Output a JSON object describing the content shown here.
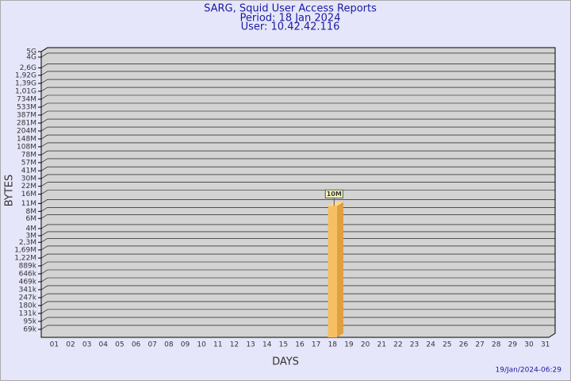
{
  "chart_data": {
    "type": "bar",
    "title": "SARG, Squid User Access Reports",
    "subtitle": "Period: 18 Jan 2024",
    "user": "User: 10.42.42.116",
    "y_label": "BYTES",
    "x_label": "DAYS",
    "footer": "19/Jan/2024-06:29",
    "yscale": "log",
    "categories": [
      "01",
      "02",
      "03",
      "04",
      "05",
      "06",
      "07",
      "08",
      "09",
      "10",
      "11",
      "12",
      "13",
      "14",
      "15",
      "16",
      "17",
      "18",
      "19",
      "20",
      "21",
      "22",
      "23",
      "24",
      "25",
      "26",
      "27",
      "28",
      "29",
      "30",
      "31"
    ],
    "values": [
      null,
      null,
      null,
      null,
      null,
      null,
      null,
      null,
      null,
      null,
      null,
      null,
      null,
      null,
      null,
      null,
      null,
      10000000,
      null,
      null,
      null,
      null,
      null,
      null,
      null,
      null,
      null,
      null,
      null,
      null,
      null
    ],
    "value_labels": [
      null,
      null,
      null,
      null,
      null,
      null,
      null,
      null,
      null,
      null,
      null,
      null,
      null,
      null,
      null,
      null,
      null,
      "10M",
      null,
      null,
      null,
      null,
      null,
      null,
      null,
      null,
      null,
      null,
      null,
      null,
      null
    ],
    "color": "#f8bf62",
    "ylim": [
      50000,
      5000000000
    ],
    "yticks": [
      {
        "value": 69000,
        "label": "69k"
      },
      {
        "value": 95000,
        "label": "95k"
      },
      {
        "value": 131000,
        "label": "131k"
      },
      {
        "value": 180000,
        "label": "180k"
      },
      {
        "value": 247000,
        "label": "247k"
      },
      {
        "value": 341000,
        "label": "341k"
      },
      {
        "value": 469000,
        "label": "469k"
      },
      {
        "value": 646000,
        "label": "646k"
      },
      {
        "value": 889000,
        "label": "889k"
      },
      {
        "value": 1220000,
        "label": "1,22M"
      },
      {
        "value": 1690000,
        "label": "1,69M"
      },
      {
        "value": 2300000,
        "label": "2,3M"
      },
      {
        "value": 3000000,
        "label": "3M"
      },
      {
        "value": 4000000,
        "label": "4M"
      },
      {
        "value": 6000000,
        "label": "6M"
      },
      {
        "value": 8000000,
        "label": "8M"
      },
      {
        "value": 11000000,
        "label": "11M"
      },
      {
        "value": 16000000,
        "label": "16M"
      },
      {
        "value": 22000000,
        "label": "22M"
      },
      {
        "value": 30000000,
        "label": "30M"
      },
      {
        "value": 41000000,
        "label": "41M"
      },
      {
        "value": 57000000,
        "label": "57M"
      },
      {
        "value": 78000000,
        "label": "78M"
      },
      {
        "value": 108000000,
        "label": "108M"
      },
      {
        "value": 148000000,
        "label": "148M"
      },
      {
        "value": 204000000,
        "label": "204M"
      },
      {
        "value": 281000000,
        "label": "281M"
      },
      {
        "value": 387000000,
        "label": "387M"
      },
      {
        "value": 533000000,
        "label": "533M"
      },
      {
        "value": 734000000,
        "label": "734M"
      },
      {
        "value": 1010000000,
        "label": "1,01G"
      },
      {
        "value": 1390000000,
        "label": "1,39G"
      },
      {
        "value": 1920000000,
        "label": "1,92G"
      },
      {
        "value": 2600000000,
        "label": "2,6G"
      },
      {
        "value": 4000000000,
        "label": "4G"
      },
      {
        "value": 5000000000,
        "label": "5G"
      }
    ],
    "grid": true
  }
}
